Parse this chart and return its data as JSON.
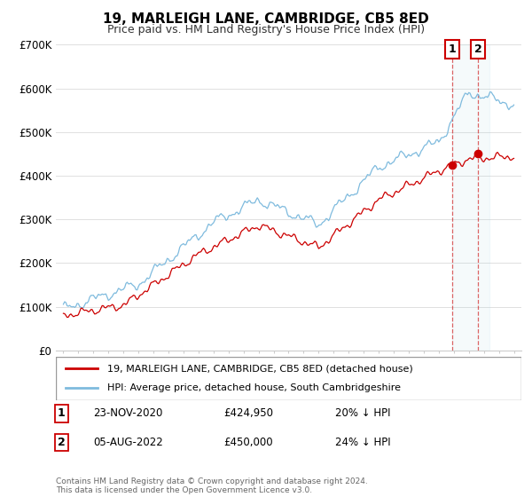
{
  "title": "19, MARLEIGH LANE, CAMBRIDGE, CB5 8ED",
  "subtitle": "Price paid vs. HM Land Registry's House Price Index (HPI)",
  "ylabel_ticks": [
    "£0",
    "£100K",
    "£200K",
    "£300K",
    "£400K",
    "£500K",
    "£600K",
    "£700K"
  ],
  "ylim": [
    0,
    700000
  ],
  "xlim_start": 1994.5,
  "xlim_end": 2025.5,
  "hpi_color": "#7fbbde",
  "price_color": "#cc0000",
  "legend_label_red": "19, MARLEIGH LANE, CAMBRIDGE, CB5 8ED (detached house)",
  "legend_label_blue": "HPI: Average price, detached house, South Cambridgeshire",
  "transaction1_label": "1",
  "transaction1_date": "23-NOV-2020",
  "transaction1_price": "£424,950",
  "transaction1_note": "20% ↓ HPI",
  "transaction2_label": "2",
  "transaction2_date": "05-AUG-2022",
  "transaction2_price": "£450,000",
  "transaction2_note": "24% ↓ HPI",
  "footer": "Contains HM Land Registry data © Crown copyright and database right 2024.\nThis data is licensed under the Open Government Licence v3.0.",
  "vline1_x": 2020.9,
  "vline2_x": 2022.6,
  "t1_x": 2020.9,
  "t1_y": 424950,
  "t2_x": 2022.6,
  "t2_y": 450000
}
